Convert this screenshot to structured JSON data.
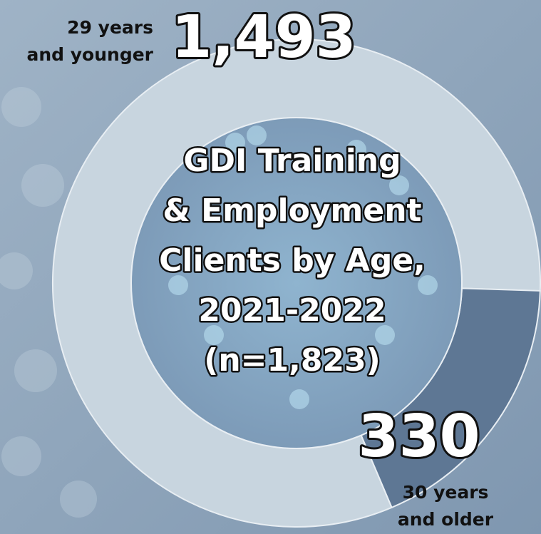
{
  "chart_data": {
    "type": "donut",
    "title": [
      "GDI Training",
      "& Employment",
      "Clients by Age,",
      "2021-2022",
      "(n=1,823)"
    ],
    "categories": [
      "29 years\nand younger",
      "30 years\nand older"
    ],
    "values": [
      1493,
      330
    ],
    "value_labels": [
      "1,493",
      "330"
    ],
    "colors": [
      "#c8d5df",
      "#5e7794"
    ]
  }
}
